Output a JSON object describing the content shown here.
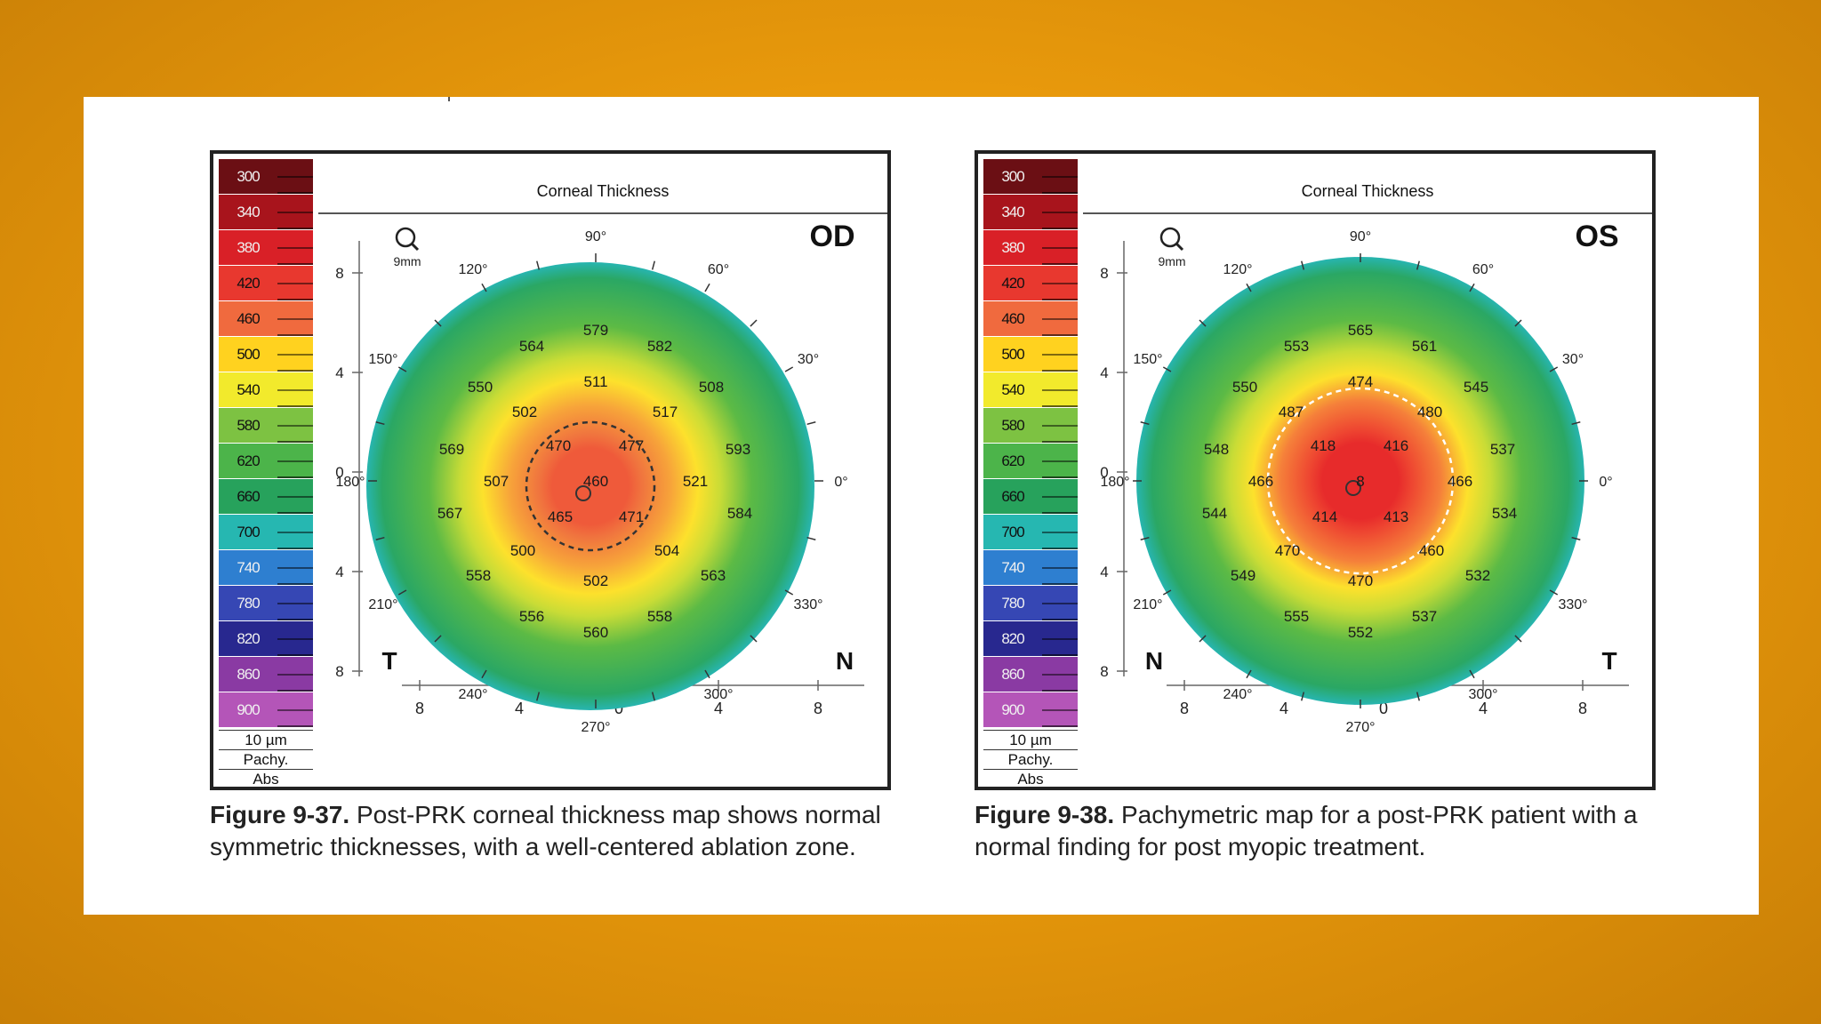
{
  "colors": {
    "background": "#e99a0c",
    "sheet": "#ffffff"
  },
  "scale_legend": {
    "values": [
      "300",
      "340",
      "380",
      "420",
      "460",
      "500",
      "540",
      "580",
      "620",
      "660",
      "700",
      "740",
      "780",
      "820",
      "860",
      "900"
    ],
    "colors": [
      "#6b0f14",
      "#a8141c",
      "#d92027",
      "#e8382f",
      "#f06a3e",
      "#ffd21f",
      "#f2ea2c",
      "#7dc242",
      "#4cb44a",
      "#27a25c",
      "#26b7b1",
      "#2e7fd0",
      "#3647b4",
      "#28288f",
      "#8a3aa3",
      "#b455b8"
    ],
    "step": "10 µm",
    "mode": "Pachy.",
    "ref": "Abs"
  },
  "figures": [
    {
      "title": "Corneal Thickness",
      "eye": "OD",
      "left_label": "T",
      "right_label": "N",
      "zoom_label": "9mm",
      "angles": {
        "a90": "90°",
        "a60": "60°",
        "a30": "30°",
        "a0": "0°",
        "a330": "330°",
        "a300": "300°",
        "a270": "270°",
        "a240": "240°",
        "a210": "210°",
        "a180": "180°",
        "a150": "150°",
        "a120": "120°"
      },
      "axis_ticks": [
        "8",
        "4",
        "0",
        "4",
        "8"
      ],
      "map_colors": [
        "#ef5a3a",
        "#f0743e",
        "#f7a43a",
        "#fde12c",
        "#c9dc36",
        "#5cba45",
        "#2aa764",
        "#27b5b0"
      ],
      "values": [
        {
          "v": "579"
        },
        {
          "v": "564"
        },
        {
          "v": "582"
        },
        {
          "v": "550"
        },
        {
          "v": "511"
        },
        {
          "v": "508"
        },
        {
          "v": "502"
        },
        {
          "v": "517"
        },
        {
          "v": "569"
        },
        {
          "v": "470"
        },
        {
          "v": "477"
        },
        {
          "v": "593"
        },
        {
          "v": "507"
        },
        {
          "v": "460"
        },
        {
          "v": "521"
        },
        {
          "v": "567"
        },
        {
          "v": "465"
        },
        {
          "v": "471"
        },
        {
          "v": "584"
        },
        {
          "v": "500"
        },
        {
          "v": "504"
        },
        {
          "v": "558"
        },
        {
          "v": "502"
        },
        {
          "v": "563"
        },
        {
          "v": "556"
        },
        {
          "v": "558"
        },
        {
          "v": "560"
        }
      ]
    },
    {
      "title": "Corneal Thickness",
      "eye": "OS",
      "left_label": "N",
      "right_label": "T",
      "zoom_label": "9mm",
      "angles": {
        "a90": "90°",
        "a60": "60°",
        "a30": "30°",
        "a0": "0°",
        "a330": "330°",
        "a300": "300°",
        "a270": "270°",
        "a240": "240°",
        "a210": "210°",
        "a180": "180°",
        "a150": "150°",
        "a120": "120°"
      },
      "axis_ticks": [
        "8",
        "4",
        "0",
        "4",
        "8"
      ],
      "map_colors": [
        "#e72b2b",
        "#ee4631",
        "#f5803a",
        "#fde12c",
        "#c9dc36",
        "#5cba45",
        "#2aa764",
        "#27b5b0"
      ],
      "values": [
        {
          "v": "565"
        },
        {
          "v": "553"
        },
        {
          "v": "561"
        },
        {
          "v": "550"
        },
        {
          "v": "474"
        },
        {
          "v": "545"
        },
        {
          "v": "487"
        },
        {
          "v": "480"
        },
        {
          "v": "548"
        },
        {
          "v": "418"
        },
        {
          "v": "416"
        },
        {
          "v": "537"
        },
        {
          "v": "466"
        },
        {
          "v": "8"
        },
        {
          "v": "466"
        },
        {
          "v": "544"
        },
        {
          "v": "414"
        },
        {
          "v": "413"
        },
        {
          "v": "534"
        },
        {
          "v": "470"
        },
        {
          "v": "460"
        },
        {
          "v": "549"
        },
        {
          "v": "470"
        },
        {
          "v": "532"
        },
        {
          "v": "555"
        },
        {
          "v": "537"
        },
        {
          "v": "552"
        }
      ]
    }
  ],
  "captions": [
    {
      "label": "Figure 9-37.",
      "text": " Post-PRK corneal thickness map shows normal symmetric thicknesses, with a well-centered ablation zone."
    },
    {
      "label": "Figure 9-38.",
      "text": " Pachymetric map for a post-PRK patient with a normal finding for post myopic treatment."
    }
  ]
}
